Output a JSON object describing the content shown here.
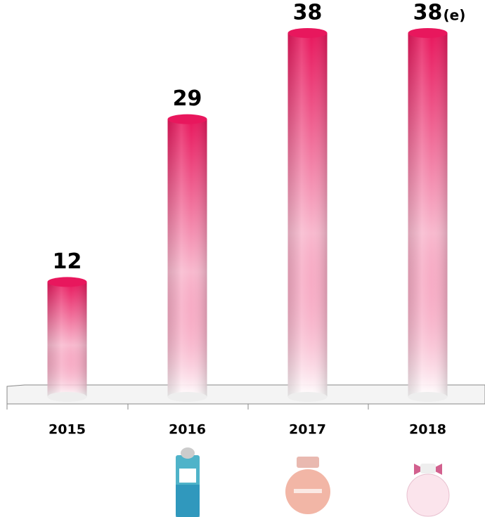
{
  "chart_data": {
    "type": "bar",
    "categories": [
      "2015",
      "2016",
      "2017",
      "2018"
    ],
    "values": [
      12,
      29,
      38,
      38
    ],
    "color": "#e8175d",
    "annotation": "(e)"
  }
}
